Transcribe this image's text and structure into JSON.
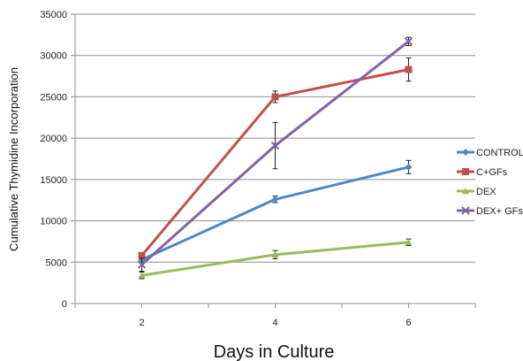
{
  "chart_data": {
    "type": "line",
    "title": "",
    "xlabel": "Days in Culture",
    "ylabel": "Cumulative Thymidine Incorporation",
    "x": [
      2,
      4,
      6
    ],
    "categories": [
      "2",
      "4",
      "6"
    ],
    "ylim": [
      0,
      35000
    ],
    "yticks": [
      0,
      5000,
      10000,
      15000,
      20000,
      25000,
      30000,
      35000
    ],
    "grid": true,
    "legend_position": "right",
    "series": [
      {
        "name": "CONTROL",
        "color": "#4f86c6",
        "marker": "diamond",
        "values": [
          5300,
          12600,
          16500
        ],
        "errors": [
          400,
          400,
          800
        ]
      },
      {
        "name": "C+GFs",
        "color": "#c0504d",
        "marker": "square",
        "values": [
          5800,
          25000,
          28300
        ],
        "errors": [
          200,
          700,
          1400
        ]
      },
      {
        "name": "DEX",
        "color": "#9bbb59",
        "marker": "triangle",
        "values": [
          3400,
          5900,
          7400
        ],
        "errors": [
          400,
          500,
          400
        ]
      },
      {
        "name": "DEX+ GFs",
        "color": "#8064a2",
        "marker": "x",
        "values": [
          4700,
          19100,
          31700
        ],
        "errors": [
          800,
          2800,
          500
        ]
      }
    ]
  }
}
